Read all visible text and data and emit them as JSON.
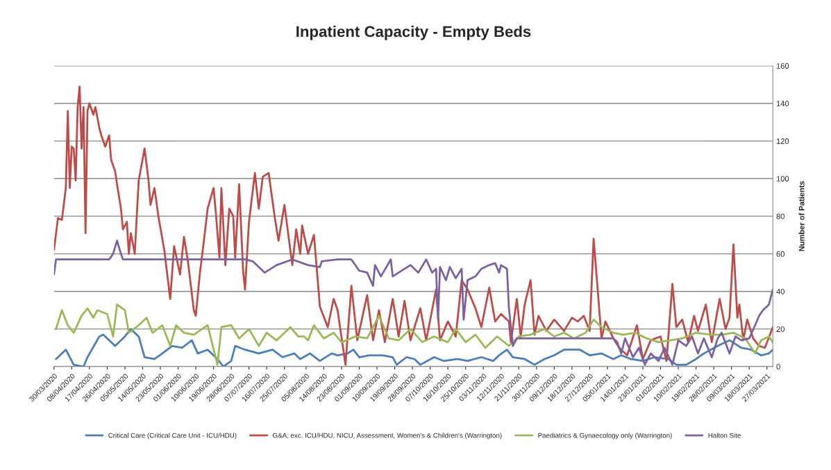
{
  "chart_data": {
    "type": "line",
    "title": "Inpatient Capacity - Empty Beds",
    "ylabel": "Number of Patients",
    "xlim": [
      "2020-03-30",
      "2021-03-30"
    ],
    "ylim": [
      0,
      160
    ],
    "yticks": [
      0,
      20,
      40,
      60,
      80,
      100,
      120,
      140,
      160
    ],
    "xticks": [
      {
        "value": "2020-03-30",
        "label": "30/03/2020"
      },
      {
        "value": "2020-04-08",
        "label": "08/04/2020"
      },
      {
        "value": "2020-04-17",
        "label": "17/04/2020"
      },
      {
        "value": "2020-04-26",
        "label": "26/04/2020"
      },
      {
        "value": "2020-05-05",
        "label": "05/05/2020"
      },
      {
        "value": "2020-05-14",
        "label": "14/05/2020"
      },
      {
        "value": "2020-05-23",
        "label": "23/05/2020"
      },
      {
        "value": "2020-06-01",
        "label": "01/06/2020"
      },
      {
        "value": "2020-06-10",
        "label": "10/06/2020"
      },
      {
        "value": "2020-06-19",
        "label": "19/06/2020"
      },
      {
        "value": "2020-06-28",
        "label": "28/06/2020"
      },
      {
        "value": "2020-07-07",
        "label": "07/07/2020"
      },
      {
        "value": "2020-07-16",
        "label": "16/07/2020"
      },
      {
        "value": "2020-07-25",
        "label": "25/07/2020"
      },
      {
        "value": "2020-08-05",
        "label": "05/08/2020"
      },
      {
        "value": "2020-08-14",
        "label": "14/08/2020"
      },
      {
        "value": "2020-08-23",
        "label": "23/08/2020"
      },
      {
        "value": "2020-09-01",
        "label": "01/09/2020"
      },
      {
        "value": "2020-09-10",
        "label": "10/09/2020"
      },
      {
        "value": "2020-09-19",
        "label": "19/09/2020"
      },
      {
        "value": "2020-09-28",
        "label": "28/09/2020"
      },
      {
        "value": "2020-10-07",
        "label": "07/10/2020"
      },
      {
        "value": "2020-10-16",
        "label": "16/10/2020"
      },
      {
        "value": "2020-10-25",
        "label": "25/10/2020"
      },
      {
        "value": "2020-11-03",
        "label": "03/11/2020"
      },
      {
        "value": "2020-11-12",
        "label": "12/11/2020"
      },
      {
        "value": "2020-11-21",
        "label": "21/11/2020"
      },
      {
        "value": "2020-11-30",
        "label": "30/11/2020"
      },
      {
        "value": "2020-12-09",
        "label": "09/12/2020"
      },
      {
        "value": "2020-12-18",
        "label": "18/12/2020"
      },
      {
        "value": "2020-12-27",
        "label": "27/12/2020"
      },
      {
        "value": "2021-01-05",
        "label": "05/01/2021"
      },
      {
        "value": "2021-01-14",
        "label": "14/01/2021"
      },
      {
        "value": "2021-01-23",
        "label": "23/01/2021"
      },
      {
        "value": "2021-02-01",
        "label": "01/02/2021"
      },
      {
        "value": "2021-02-10",
        "label": "10/02/2021"
      },
      {
        "value": "2021-02-19",
        "label": "19/02/2021"
      },
      {
        "value": "2021-02-28",
        "label": "28/02/2021"
      },
      {
        "value": "2021-03-09",
        "label": "09/03/2021"
      },
      {
        "value": "2021-03-18",
        "label": "18/03/2021"
      },
      {
        "value": "2021-03-27",
        "label": "27/03/2021"
      }
    ],
    "grid": "y",
    "legend": "bottom",
    "marker": "none",
    "line_style": "solid",
    "series": [
      {
        "name": "Critical Care (Critical Care Unit - ICU/HDU)",
        "color": "#4a7ebb",
        "x": [
          "2020-03-31",
          "2020-04-05",
          "2020-04-09",
          "2020-04-14",
          "2020-04-16",
          "2020-04-22",
          "2020-04-24",
          "2020-04-30",
          "2020-05-05",
          "2020-05-08",
          "2020-05-12",
          "2020-05-15",
          "2020-05-20",
          "2020-05-24",
          "2020-05-29",
          "2020-06-03",
          "2020-06-08",
          "2020-06-11",
          "2020-06-16",
          "2020-06-21",
          "2020-06-24",
          "2020-06-28",
          "2020-06-30",
          "2020-07-05",
          "2020-07-12",
          "2020-07-19",
          "2020-07-24",
          "2020-07-30",
          "2020-08-02",
          "2020-08-07",
          "2020-08-12",
          "2020-08-18",
          "2020-08-21",
          "2020-08-26",
          "2020-08-29",
          "2020-09-01",
          "2020-09-06",
          "2020-09-13",
          "2020-09-18",
          "2020-09-20",
          "2020-09-25",
          "2020-09-29",
          "2020-10-02",
          "2020-10-09",
          "2020-10-14",
          "2020-10-21",
          "2020-10-26",
          "2020-11-02",
          "2020-11-08",
          "2020-11-11",
          "2020-11-15",
          "2020-11-18",
          "2020-11-24",
          "2020-11-29",
          "2020-12-04",
          "2020-12-09",
          "2020-12-14",
          "2020-12-22",
          "2020-12-27",
          "2021-01-02",
          "2021-01-08",
          "2021-01-12",
          "2021-01-17",
          "2021-01-23",
          "2021-01-29",
          "2021-02-05",
          "2021-02-09",
          "2021-02-14",
          "2021-02-19",
          "2021-02-23",
          "2021-03-02",
          "2021-03-08",
          "2021-03-14",
          "2021-03-19",
          "2021-03-24",
          "2021-03-28",
          "2021-03-30"
        ],
        "values": [
          4,
          9,
          1,
          0,
          5,
          16,
          17,
          11,
          16,
          20,
          16,
          5,
          4,
          7,
          11,
          10,
          14,
          7,
          9,
          4,
          0,
          3,
          11,
          9,
          7,
          9,
          5,
          7,
          4,
          7,
          3,
          7,
          6,
          7,
          9,
          5,
          6,
          6,
          5,
          1,
          5,
          4,
          1,
          5,
          3,
          4,
          3,
          5,
          3,
          6,
          9,
          5,
          4,
          1,
          4,
          6,
          9,
          9,
          6,
          7,
          4,
          6,
          4,
          3,
          5,
          4,
          1,
          1,
          4,
          7,
          11,
          14,
          10,
          9,
          6,
          7,
          9
        ]
      },
      {
        "name": "G&A; exc. ICU/HDU, NICU, Assessment, Women's & Children's (Warrington)",
        "color": "#be4b48",
        "x": [
          "2020-03-30",
          "2020-04-01",
          "2020-04-03",
          "2020-04-05",
          "2020-04-06",
          "2020-04-07",
          "2020-04-08",
          "2020-04-09",
          "2020-04-10",
          "2020-04-11",
          "2020-04-12",
          "2020-04-13",
          "2020-04-14",
          "2020-04-15",
          "2020-04-16",
          "2020-04-17",
          "2020-04-19",
          "2020-04-20",
          "2020-04-22",
          "2020-04-23",
          "2020-04-25",
          "2020-04-27",
          "2020-04-28",
          "2020-04-30",
          "2020-05-01",
          "2020-05-03",
          "2020-05-04",
          "2020-05-06",
          "2020-05-07",
          "2020-05-08",
          "2020-05-10",
          "2020-05-12",
          "2020-05-15",
          "2020-05-17",
          "2020-05-18",
          "2020-05-20",
          "2020-05-22",
          "2020-05-25",
          "2020-05-28",
          "2020-05-30",
          "2020-06-02",
          "2020-06-04",
          "2020-06-06",
          "2020-06-09",
          "2020-06-10",
          "2020-06-12",
          "2020-06-14",
          "2020-06-16",
          "2020-06-19",
          "2020-06-20",
          "2020-06-22",
          "2020-06-23",
          "2020-06-25",
          "2020-06-27",
          "2020-06-29",
          "2020-06-30",
          "2020-07-02",
          "2020-07-04",
          "2020-07-05",
          "2020-07-07",
          "2020-07-10",
          "2020-07-12",
          "2020-07-14",
          "2020-07-17",
          "2020-07-20",
          "2020-07-22",
          "2020-07-25",
          "2020-07-29",
          "2020-07-31",
          "2020-08-02",
          "2020-08-03",
          "2020-08-06",
          "2020-08-09",
          "2020-08-12",
          "2020-08-16",
          "2020-08-19",
          "2020-08-21",
          "2020-08-25",
          "2020-08-28",
          "2020-08-31",
          "2020-09-05",
          "2020-09-08",
          "2020-09-11",
          "2020-09-14",
          "2020-09-18",
          "2020-09-21",
          "2020-09-24",
          "2020-09-27",
          "2020-10-02",
          "2020-10-05",
          "2020-10-10",
          "2020-10-12",
          "2020-10-16",
          "2020-10-20",
          "2020-10-23",
          "2020-10-26",
          "2020-10-30",
          "2020-11-02",
          "2020-11-06",
          "2020-11-09",
          "2020-11-12",
          "2020-11-16",
          "2020-11-17",
          "2020-11-20",
          "2020-11-22",
          "2020-11-24",
          "2020-11-27",
          "2020-11-29",
          "2020-12-01",
          "2020-12-05",
          "2020-12-09",
          "2020-12-14",
          "2020-12-18",
          "2020-12-21",
          "2020-12-24",
          "2020-12-27",
          "2020-12-29",
          "2020-12-31",
          "2021-01-02",
          "2021-01-04",
          "2021-01-08",
          "2021-01-11",
          "2021-01-15",
          "2021-01-20",
          "2021-01-23",
          "2021-01-27",
          "2021-02-01",
          "2021-02-04",
          "2021-02-07",
          "2021-02-09",
          "2021-02-12",
          "2021-02-15",
          "2021-02-18",
          "2021-02-20",
          "2021-02-24",
          "2021-02-26",
          "2021-02-27",
          "2021-03-03",
          "2021-03-06",
          "2021-03-08",
          "2021-03-10",
          "2021-03-12",
          "2021-03-13",
          "2021-03-15",
          "2021-03-17",
          "2021-03-20",
          "2021-03-23",
          "2021-03-26",
          "2021-03-30"
        ],
        "values": [
          62,
          79,
          78,
          95,
          136,
          95,
          117,
          116,
          99,
          138,
          149,
          116,
          138,
          71,
          136,
          140,
          134,
          138,
          127,
          123,
          117,
          123,
          110,
          104,
          97,
          84,
          73,
          77,
          60,
          71,
          60,
          99,
          116,
          99,
          86,
          95,
          80,
          62,
          36,
          64,
          49,
          69,
          56,
          30,
          27,
          49,
          66,
          84,
          95,
          84,
          58,
          95,
          54,
          84,
          80,
          58,
          97,
          51,
          41,
          77,
          103,
          84,
          101,
          103,
          80,
          67,
          86,
          54,
          73,
          60,
          75,
          60,
          70,
          32,
          21,
          36,
          30,
          1,
          43,
          14,
          38,
          14,
          30,
          13,
          36,
          16,
          35,
          14,
          31,
          14,
          41,
          14,
          24,
          16,
          46,
          41,
          31,
          21,
          42,
          24,
          28,
          24,
          13,
          36,
          16,
          33,
          46,
          17,
          27,
          19,
          25,
          19,
          26,
          24,
          27,
          19,
          68,
          42,
          15,
          24,
          15,
          10,
          6,
          22,
          4,
          14,
          16,
          3,
          44,
          21,
          25,
          13,
          27,
          19,
          33,
          19,
          13,
          36,
          20,
          26,
          65,
          26,
          33,
          14,
          25,
          15,
          11,
          10,
          21
        ]
      },
      {
        "name": "Paediatrics & Gynaecology only (Warrington)",
        "color": "#98b954",
        "x": [
          "2020-03-31",
          "2020-04-03",
          "2020-04-06",
          "2020-04-09",
          "2020-04-13",
          "2020-04-16",
          "2020-04-19",
          "2020-04-21",
          "2020-04-26",
          "2020-04-29",
          "2020-05-01",
          "2020-05-05",
          "2020-05-07",
          "2020-05-12",
          "2020-05-16",
          "2020-05-19",
          "2020-05-24",
          "2020-05-28",
          "2020-05-31",
          "2020-06-04",
          "2020-06-09",
          "2020-06-16",
          "2020-06-21",
          "2020-06-23",
          "2020-06-28",
          "2020-07-02",
          "2020-07-07",
          "2020-07-12",
          "2020-07-16",
          "2020-07-21",
          "2020-07-28",
          "2020-08-01",
          "2020-08-04",
          "2020-08-06",
          "2020-08-09",
          "2020-08-14",
          "2020-08-19",
          "2020-08-23",
          "2020-08-30",
          "2020-09-05",
          "2020-09-11",
          "2020-09-16",
          "2020-09-21",
          "2020-09-27",
          "2020-10-03",
          "2020-10-09",
          "2020-10-16",
          "2020-10-20",
          "2020-10-25",
          "2020-10-30",
          "2020-11-04",
          "2020-11-10",
          "2020-11-16",
          "2020-11-21",
          "2020-11-27",
          "2020-12-04",
          "2020-12-09",
          "2020-12-14",
          "2020-12-19",
          "2020-12-25",
          "2020-12-29",
          "2021-01-02",
          "2021-01-08",
          "2021-01-13",
          "2021-01-19",
          "2021-01-25",
          "2021-01-31",
          "2021-02-06",
          "2021-02-12",
          "2021-02-19",
          "2021-02-26",
          "2021-03-04",
          "2021-03-10",
          "2021-03-16",
          "2021-03-21",
          "2021-03-24",
          "2021-03-28",
          "2021-03-30"
        ],
        "values": [
          20,
          30,
          22,
          18,
          27,
          31,
          26,
          30,
          28,
          16,
          33,
          30,
          18,
          22,
          26,
          18,
          22,
          11,
          22,
          18,
          17,
          22,
          1,
          21,
          22,
          15,
          20,
          11,
          18,
          14,
          21,
          16,
          16,
          14,
          22,
          15,
          18,
          13,
          16,
          15,
          27,
          15,
          14,
          20,
          13,
          16,
          13,
          20,
          13,
          17,
          10,
          16,
          11,
          16,
          17,
          20,
          16,
          18,
          15,
          18,
          25,
          21,
          18,
          17,
          18,
          15,
          13,
          14,
          15,
          18,
          17,
          17,
          18,
          15,
          7,
          14,
          16,
          13
        ]
      },
      {
        "name": "Halton Site",
        "color": "#7d60a0",
        "x": [
          "2020-03-30",
          "2020-03-31",
          "2020-04-27",
          "2020-04-29",
          "2020-05-01",
          "2020-05-03",
          "2020-05-04",
          "2020-07-05",
          "2020-07-09",
          "2020-07-15",
          "2020-07-21",
          "2020-07-29",
          "2020-08-06",
          "2020-08-12",
          "2020-08-13",
          "2020-08-21",
          "2020-08-28",
          "2020-09-01",
          "2020-09-05",
          "2020-09-08",
          "2020-09-09",
          "2020-09-12",
          "2020-09-17",
          "2020-09-18",
          "2020-09-21",
          "2020-09-27",
          "2020-10-01",
          "2020-10-05",
          "2020-10-08",
          "2020-10-10",
          "2020-10-11",
          "2020-10-12",
          "2020-10-15",
          "2020-10-17",
          "2020-10-20",
          "2020-10-23",
          "2020-10-24",
          "2020-10-26",
          "2020-10-30",
          "2020-11-02",
          "2020-11-06",
          "2020-11-09",
          "2020-11-11",
          "2020-11-12",
          "2020-11-15",
          "2020-11-16",
          "2020-11-18",
          "2020-11-20",
          "2021-01-08",
          "2021-01-10",
          "2021-01-12",
          "2021-01-14",
          "2021-01-18",
          "2021-01-21",
          "2021-01-24",
          "2021-01-27",
          "2021-01-31",
          "2021-02-03",
          "2021-02-07",
          "2021-02-10",
          "2021-02-14",
          "2021-02-17",
          "2021-02-20",
          "2021-02-23",
          "2021-02-27",
          "2021-03-02",
          "2021-03-04",
          "2021-03-08",
          "2021-03-11",
          "2021-03-14",
          "2021-03-18",
          "2021-03-21",
          "2021-03-23",
          "2021-03-25",
          "2021-03-28",
          "2021-03-30"
        ],
        "values": [
          49,
          57,
          57,
          60,
          67,
          60,
          57,
          57,
          56,
          50,
          54,
          57,
          54,
          53,
          56,
          57,
          57,
          51,
          50,
          43,
          54,
          48,
          57,
          48,
          50,
          54,
          50,
          57,
          50,
          52,
          25,
          53,
          46,
          53,
          47,
          52,
          25,
          46,
          48,
          52,
          54,
          55,
          50,
          54,
          52,
          31,
          11,
          15,
          15,
          13,
          7,
          15,
          5,
          10,
          1,
          7,
          3,
          10,
          1,
          14,
          11,
          16,
          7,
          15,
          5,
          15,
          18,
          7,
          16,
          14,
          15,
          22,
          27,
          30,
          33,
          41
        ]
      }
    ]
  }
}
